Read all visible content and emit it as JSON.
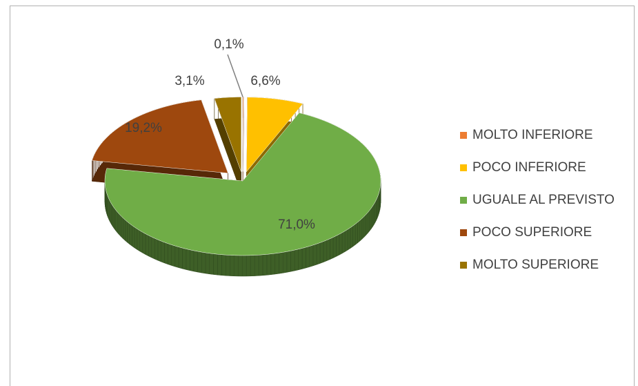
{
  "chart_data": {
    "type": "pie",
    "categories": [
      "MOLTO INFERIORE",
      "POCO INFERIORE",
      "UGUALE AL PREVISTO",
      "POCO SUPERIORE",
      "MOLTO SUPERIORE"
    ],
    "values": [
      0.1,
      6.6,
      71.0,
      19.2,
      3.1
    ],
    "value_labels": [
      "0,1%",
      "6,6%",
      "71,0%",
      "19,2%",
      "3,1%"
    ],
    "colors": [
      "#ed7d31",
      "#ffc000",
      "#70ad47",
      "#9e480e",
      "#997300"
    ],
    "legend": "right"
  }
}
